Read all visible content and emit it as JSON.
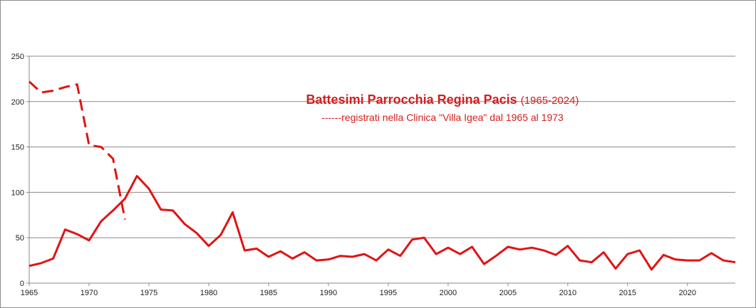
{
  "chart_data": {
    "type": "line",
    "title": "Battesimi Parrocchia Regina Pacis",
    "title_years": "(1965-2024)",
    "subtitle": "------registrati nella Clinica \"Villa Igea\" dal 1965 al 1973",
    "xlim": [
      1965,
      2024
    ],
    "ylim": [
      0,
      250
    ],
    "x_ticks": [
      1965,
      1970,
      1975,
      1980,
      1985,
      1990,
      1995,
      2000,
      2005,
      2010,
      2015,
      2020
    ],
    "y_ticks": [
      0,
      50,
      100,
      150,
      200,
      250
    ],
    "grid": "horizontal",
    "color": "#e01414",
    "series": [
      {
        "style": "solid",
        "x": [
          1965,
          1966,
          1967,
          1968,
          1969,
          1970,
          1971,
          1972,
          1973,
          1974,
          1975,
          1976,
          1977,
          1978,
          1979,
          1980,
          1981,
          1982,
          1983,
          1984,
          1985,
          1986,
          1987,
          1988,
          1989,
          1990,
          1991,
          1992,
          1993,
          1994,
          1995,
          1996,
          1997,
          1998,
          1999,
          2000,
          2001,
          2002,
          2003,
          2004,
          2005,
          2006,
          2007,
          2008,
          2009,
          2010,
          2011,
          2012,
          2013,
          2014,
          2015,
          2016,
          2017,
          2018,
          2019,
          2020,
          2021,
          2022,
          2023,
          2024
        ],
        "values": [
          19,
          22,
          27,
          59,
          54,
          47,
          68,
          80,
          93,
          118,
          104,
          81,
          80,
          65,
          55,
          41,
          53,
          78,
          36,
          38,
          29,
          35,
          27,
          34,
          25,
          26,
          30,
          29,
          32,
          25,
          37,
          30,
          48,
          50,
          32,
          39,
          32,
          40,
          21,
          30,
          40,
          37,
          39,
          36,
          31,
          41,
          25,
          23,
          34,
          16,
          32,
          36,
          15,
          31,
          26,
          25,
          25,
          33,
          25,
          23
        ]
      },
      {
        "style": "dashed",
        "x": [
          1965,
          1966,
          1967,
          1968,
          1969,
          1970,
          1971,
          1972,
          1973
        ],
        "values": [
          222,
          210,
          212,
          216,
          219,
          152,
          150,
          137,
          70
        ]
      }
    ]
  }
}
